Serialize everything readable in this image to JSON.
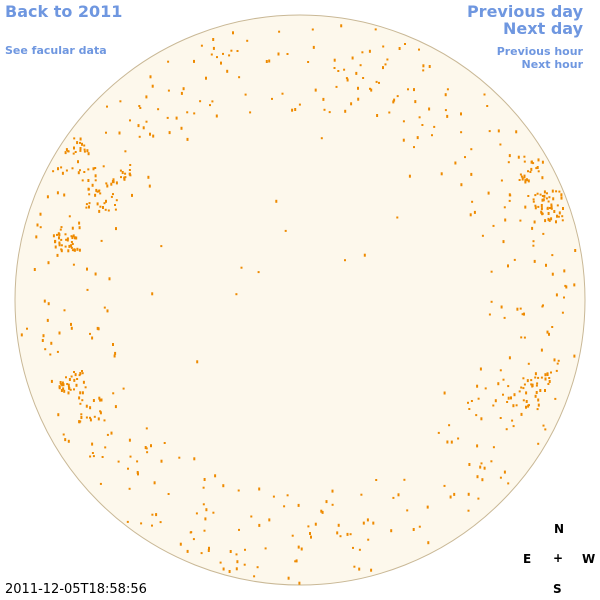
{
  "navigation": {
    "back": "Back to 2011",
    "facular_data": "See facular data",
    "previous_day": "Previous day",
    "next_day": "Next day",
    "previous_hour": "Previous hour",
    "next_hour": "Next hour"
  },
  "timestamp": "2011-12-05T18:58:56",
  "compass": {
    "north": "N",
    "east": "E",
    "center": "+",
    "west": "W",
    "south": "S"
  }
}
